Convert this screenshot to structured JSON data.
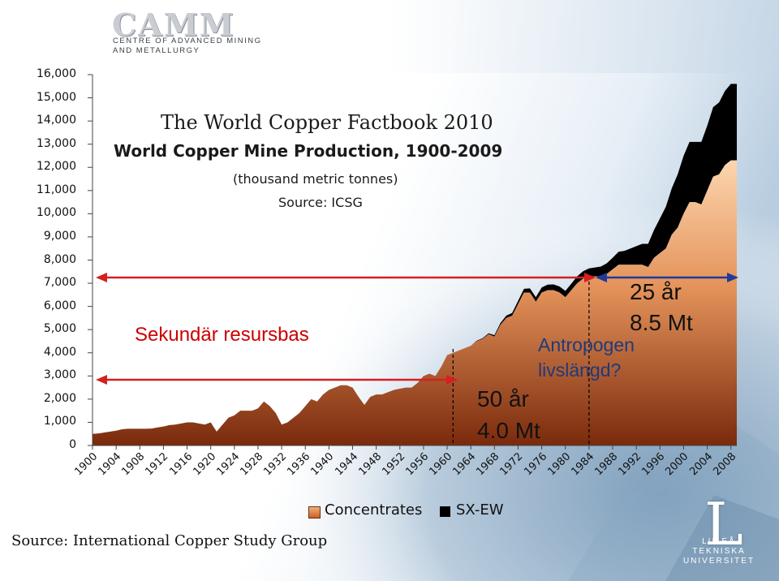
{
  "logo": {
    "wordmark": "CAMM",
    "line1": "CENTRE OF ADVANCED MINING",
    "line2": "AND METALLURGY"
  },
  "university_logo": {
    "letter": "L",
    "line1": "LULEÅ",
    "line2": "TEKNISKA",
    "line3": "UNIVERSITET"
  },
  "footer_source": "Source: International Copper Study Group",
  "chart_data": {
    "type": "area",
    "title": "The World Copper Factbook 2010",
    "subtitle": "World Copper Mine Production, 1900-2009",
    "units_note": "(thousand metric tonnes)",
    "source_note": "Source: ICSG",
    "ylim": [
      0,
      16000
    ],
    "yticks": [
      "16,000",
      "15,000",
      "14,000",
      "13,000",
      "12,000",
      "11,000",
      "10,000",
      "9,000",
      "8,000",
      "7,000",
      "6,000",
      "5,000",
      "4,000",
      "3,000",
      "2,000",
      "1,000",
      "0"
    ],
    "xticks": [
      "1900",
      "1904",
      "1908",
      "1912",
      "1916",
      "1920",
      "1924",
      "1928",
      "1932",
      "1936",
      "1940",
      "1944",
      "1948",
      "1952",
      "1956",
      "1960",
      "1964",
      "1968",
      "1972",
      "1976",
      "1980",
      "1984",
      "1988",
      "1992",
      "1996",
      "2000",
      "2004",
      "2008"
    ],
    "grid": false,
    "legend_position": "bottom",
    "x": [
      1900,
      1901,
      1902,
      1903,
      1904,
      1905,
      1906,
      1907,
      1908,
      1909,
      1910,
      1911,
      1912,
      1913,
      1914,
      1915,
      1916,
      1917,
      1918,
      1919,
      1920,
      1921,
      1922,
      1923,
      1924,
      1925,
      1926,
      1927,
      1928,
      1929,
      1930,
      1931,
      1932,
      1933,
      1934,
      1935,
      1936,
      1937,
      1938,
      1939,
      1940,
      1941,
      1942,
      1943,
      1944,
      1945,
      1946,
      1947,
      1948,
      1949,
      1950,
      1951,
      1952,
      1953,
      1954,
      1955,
      1956,
      1957,
      1958,
      1959,
      1960,
      1961,
      1962,
      1963,
      1964,
      1965,
      1966,
      1967,
      1968,
      1969,
      1970,
      1971,
      1972,
      1973,
      1974,
      1975,
      1976,
      1977,
      1978,
      1979,
      1980,
      1981,
      1982,
      1983,
      1984,
      1985,
      1986,
      1987,
      1988,
      1989,
      1990,
      1991,
      1992,
      1993,
      1994,
      1995,
      1996,
      1997,
      1998,
      1999,
      2000,
      2001,
      2002,
      2003,
      2004,
      2005,
      2006,
      2007,
      2008,
      2009
    ],
    "series": [
      {
        "name": "Concentrates",
        "color": "#b8582a",
        "values": [
          500,
          520,
          560,
          600,
          640,
          700,
          720,
          720,
          720,
          720,
          730,
          780,
          820,
          880,
          900,
          950,
          1000,
          1000,
          950,
          900,
          1000,
          600,
          900,
          1200,
          1300,
          1500,
          1500,
          1500,
          1600,
          1900,
          1700,
          1400,
          900,
          1000,
          1200,
          1400,
          1700,
          2000,
          1900,
          2200,
          2400,
          2500,
          2600,
          2600,
          2500,
          2100,
          1750,
          2100,
          2200,
          2200,
          2300,
          2400,
          2450,
          2500,
          2500,
          2700,
          3000,
          3100,
          3000,
          3400,
          3900,
          4000,
          4100,
          4200,
          4300,
          4500,
          4600,
          4800,
          4700,
          5200,
          5500,
          5600,
          6100,
          6600,
          6600,
          6200,
          6600,
          6700,
          6700,
          6600,
          6400,
          6700,
          7000,
          7200,
          7300,
          7300,
          7300,
          7400,
          7600,
          7800,
          7800,
          7800,
          7800,
          7800,
          7700,
          8100,
          8300,
          8500,
          9100,
          9400,
          10000,
          10500,
          10500,
          10400,
          11000,
          11600,
          11700,
          12100,
          12300,
          12300
        ]
      },
      {
        "name": "SX-EW",
        "color": "#000000",
        "values": [
          0,
          0,
          0,
          0,
          0,
          0,
          0,
          0,
          0,
          0,
          0,
          0,
          0,
          0,
          0,
          0,
          0,
          0,
          0,
          0,
          0,
          0,
          0,
          0,
          0,
          0,
          0,
          0,
          0,
          0,
          0,
          0,
          0,
          0,
          0,
          0,
          0,
          0,
          0,
          0,
          0,
          0,
          0,
          0,
          0,
          0,
          0,
          0,
          0,
          0,
          0,
          0,
          0,
          0,
          0,
          0,
          0,
          0,
          0,
          0,
          0,
          0,
          0,
          0,
          0,
          20,
          30,
          40,
          60,
          80,
          100,
          120,
          140,
          160,
          180,
          200,
          220,
          240,
          250,
          260,
          270,
          280,
          300,
          320,
          340,
          380,
          420,
          460,
          500,
          560,
          600,
          700,
          800,
          900,
          1000,
          1200,
          1500,
          1800,
          2000,
          2300,
          2500,
          2600,
          2600,
          2700,
          2800,
          3000,
          3100,
          3200,
          3300,
          3300
        ]
      }
    ],
    "annotations": {
      "left_label": "Sekundär resursbas",
      "period1_years": "50 år",
      "period1_amount": "4.0 Mt",
      "period2_years": "25 år",
      "period2_amount": "8.5 Mt",
      "question_line1": "Antropogen",
      "question_line2": "livslängd?"
    },
    "legend": [
      {
        "label": "Concentrates",
        "color": "#e29057"
      },
      {
        "label": "SX-EW",
        "color": "#000000"
      }
    ]
  }
}
